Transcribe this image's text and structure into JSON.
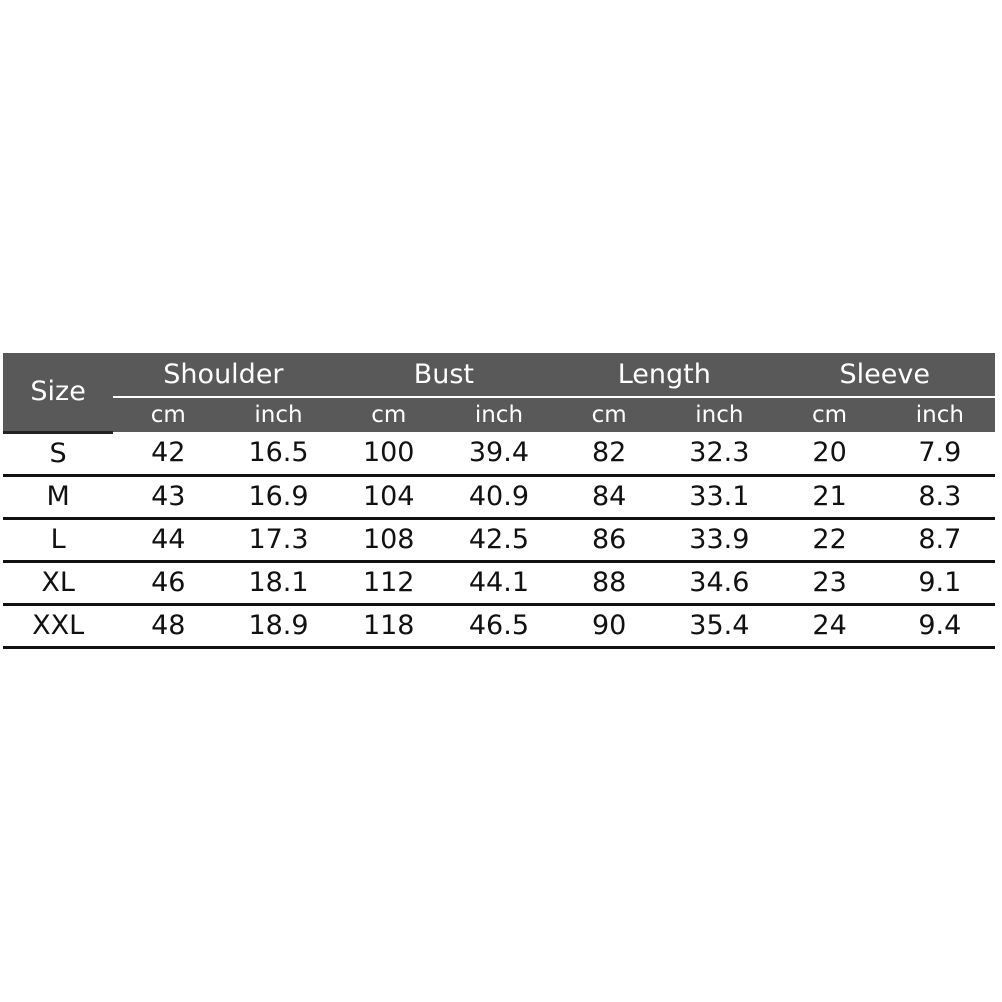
{
  "table": {
    "size_header": "Size",
    "groups": [
      "Shoulder",
      "Bust",
      "Length",
      "Sleeve"
    ],
    "units": [
      "cm",
      "inch",
      "cm",
      "inch",
      "cm",
      "inch",
      "cm",
      "inch"
    ],
    "rows": [
      [
        "S",
        "42",
        "16.5",
        "100",
        "39.4",
        "82",
        "32.3",
        "20",
        "7.9"
      ],
      [
        "M",
        "43",
        "16.9",
        "104",
        "40.9",
        "84",
        "33.1",
        "21",
        "8.3"
      ],
      [
        "L",
        "44",
        "17.3",
        "108",
        "42.5",
        "86",
        "33.9",
        "22",
        "8.7"
      ],
      [
        "XL",
        "46",
        "18.1",
        "112",
        "44.1",
        "88",
        "34.6",
        "23",
        "9.1"
      ],
      [
        "XXL",
        "48",
        "18.9",
        "118",
        "46.5",
        "90",
        "35.4",
        "24",
        "9.4"
      ]
    ],
    "header_color": "#595959"
  }
}
